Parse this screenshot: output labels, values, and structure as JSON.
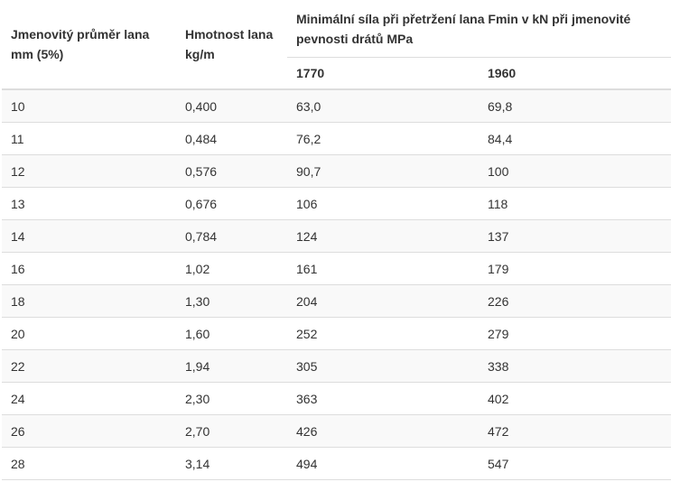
{
  "table": {
    "headers": {
      "diameter": "Jmenovitý průměr lana mm (5%)",
      "mass": "Hmotnost lana kg/m",
      "force_group": "Minimální síla při přetržení lana Fmin v kN při jmenovité pevnosti drátů MPa",
      "strength_1770": "1770",
      "strength_1960": "1960"
    },
    "rows": [
      [
        "10",
        "0,400",
        "63,0",
        "69,8"
      ],
      [
        "11",
        "0,484",
        "76,2",
        "84,4"
      ],
      [
        "12",
        "0,576",
        "90,7",
        "100"
      ],
      [
        "13",
        "0,676",
        "106",
        "118"
      ],
      [
        "14",
        "0,784",
        "124",
        "137"
      ],
      [
        "16",
        "1,02",
        "161",
        "179"
      ],
      [
        "18",
        "1,30",
        "204",
        "226"
      ],
      [
        "20",
        "1,60",
        "252",
        "279"
      ],
      [
        "22",
        "1,94",
        "305",
        "338"
      ],
      [
        "24",
        "2,30",
        "363",
        "402"
      ],
      [
        "26",
        "2,70",
        "426",
        "472"
      ],
      [
        "28",
        "3,14",
        "494",
        "547"
      ]
    ]
  }
}
